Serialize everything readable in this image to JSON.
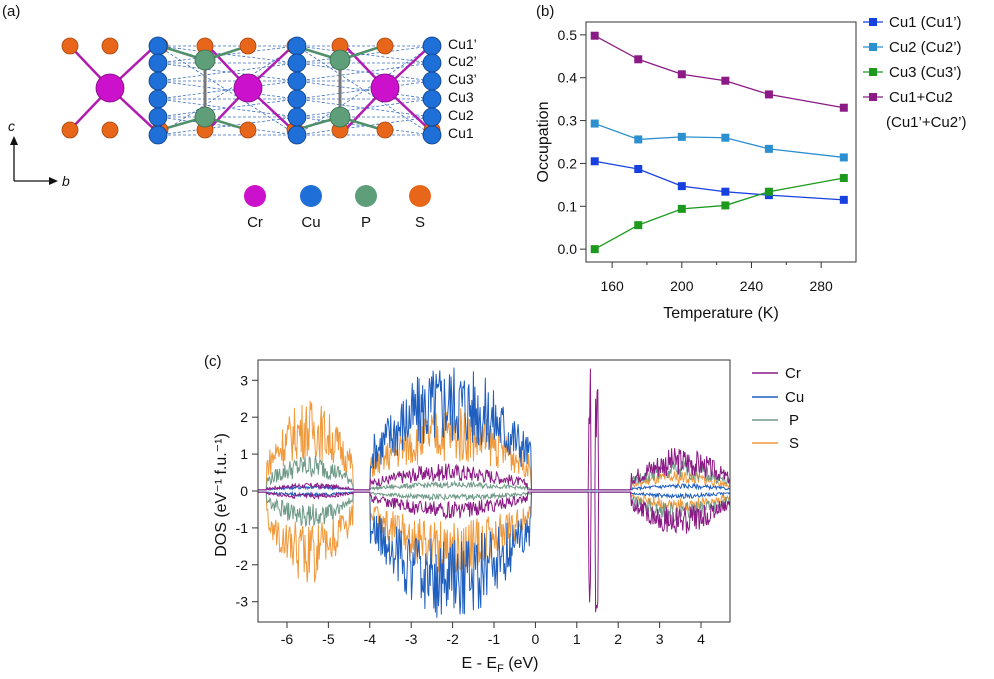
{
  "panel_a": {
    "label": "(a)",
    "axis_c": "c",
    "axis_b": "b",
    "site_labels": [
      "Cu1’",
      "Cu2’",
      "Cu3’",
      "Cu3",
      "Cu2",
      "Cu1"
    ],
    "atom_legend": [
      {
        "name": "Cr",
        "color": "#cc11cc"
      },
      {
        "name": "Cu",
        "color": "#1f6fd8"
      },
      {
        "name": "P",
        "color": "#5e9e78"
      },
      {
        "name": "S",
        "color": "#e8661a"
      }
    ]
  },
  "chart_data": [
    {
      "type": "line",
      "panel": "(b)",
      "title": "",
      "xlabel": "Temperature (K)",
      "ylabel": "Occupation",
      "xlim": [
        145,
        300
      ],
      "ylim": [
        -0.03,
        0.53
      ],
      "xticks": [
        160,
        200,
        240,
        280
      ],
      "yticks": [
        0.0,
        0.1,
        0.2,
        0.3,
        0.4,
        0.5
      ],
      "x": [
        150,
        175,
        200,
        225,
        250,
        293
      ],
      "series": [
        {
          "name": "Cu1 (Cu1’)",
          "color": "#1740e0",
          "values": [
            0.205,
            0.187,
            0.147,
            0.134,
            0.126,
            0.115
          ]
        },
        {
          "name": "Cu2 (Cu2’)",
          "color": "#2b8fd0",
          "values": [
            0.293,
            0.256,
            0.262,
            0.26,
            0.234,
            0.214
          ]
        },
        {
          "name": "Cu3 (Cu3’)",
          "color": "#1d9a1d",
          "values": [
            0.0,
            0.056,
            0.094,
            0.102,
            0.134,
            0.166
          ]
        },
        {
          "name": "Cu1+Cu2",
          "name_line2": "(Cu1’+Cu2’)",
          "color": "#8b1a86",
          "values": [
            0.498,
            0.443,
            0.408,
            0.393,
            0.361,
            0.33
          ]
        }
      ],
      "legend": "right"
    },
    {
      "type": "line",
      "panel": "(c)",
      "title": "",
      "xlabel_main": "E - E",
      "xlabel_sub": "F",
      "xlabel_tail": " (eV)",
      "ylabel": "DOS (eV⁻¹ f.u.⁻¹)",
      "xlim": [
        -6.7,
        4.7
      ],
      "ylim": [
        -3.55,
        3.55
      ],
      "xticks": [
        -6,
        -5,
        -4,
        -3,
        -2,
        -1,
        0,
        1,
        2,
        3,
        4
      ],
      "yticks": [
        -3,
        -2,
        -1,
        0,
        1,
        2,
        3
      ],
      "series": [
        {
          "name": "Cr",
          "color": "#8b1a86",
          "bands": [
            [
              -6.5,
              -4.4,
              0.22
            ],
            [
              -4.0,
              -0.2,
              0.75
            ],
            [
              1.28,
              1.34,
              3.55
            ],
            [
              1.45,
              1.52,
              3.55
            ],
            [
              2.3,
              4.7,
              1.2
            ]
          ]
        },
        {
          "name": "Cu",
          "color": "#1f5fbf",
          "bands": [
            [
              -6.5,
              -4.4,
              0.15
            ],
            [
              -4.0,
              -0.1,
              3.55
            ],
            [
              2.3,
              4.7,
              0.2
            ]
          ]
        },
        {
          "name": "P",
          "color": "#6f9a87",
          "bands": [
            [
              -6.5,
              -4.4,
              1.0
            ],
            [
              -4.0,
              -0.1,
              0.25
            ],
            [
              2.3,
              4.7,
              0.85
            ]
          ]
        },
        {
          "name": "S",
          "color": "#f0993a",
          "bands": [
            [
              -6.5,
              -4.4,
              2.5
            ],
            [
              -4.0,
              -0.1,
              2.3
            ],
            [
              2.3,
              4.7,
              0.55
            ]
          ]
        }
      ],
      "legend": "right"
    }
  ]
}
